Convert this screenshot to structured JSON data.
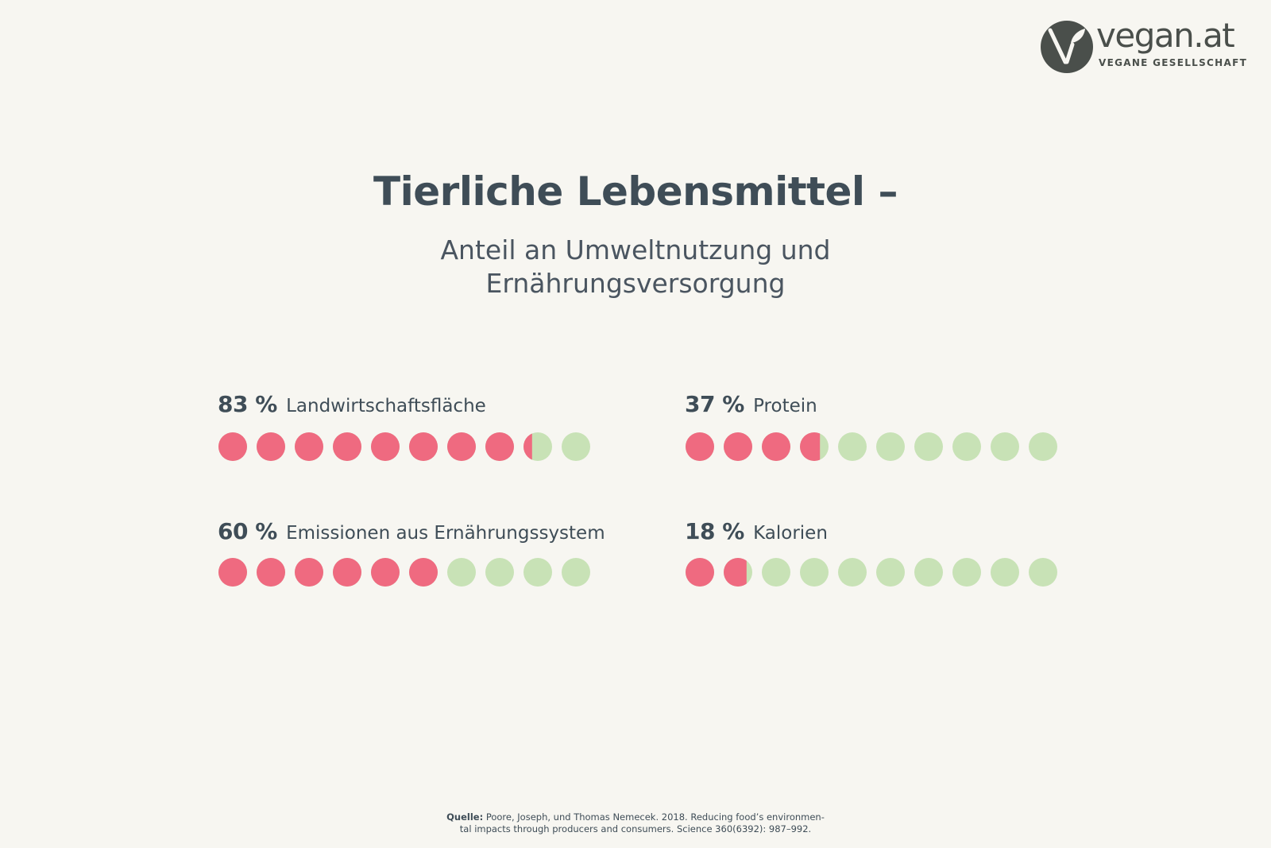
{
  "brand": {
    "name": "vegan.at",
    "tagline": "VEGANE GESELLSCHAFT",
    "color": "#4a4f4b"
  },
  "title": "Tierliche Lebensmittel –",
  "subtitle": {
    "line1": "Anteil an Umweltnutzung und",
    "line2": "Ernährungsversorgung"
  },
  "colors": {
    "animal": "#ef6a80",
    "rest": "#c8e2b6",
    "text": "#3f4d57",
    "background": "#f7f6f1"
  },
  "chart_data": {
    "type": "dot-matrix",
    "dots_per_metric": 10,
    "metrics": [
      {
        "id": "landwirtschaftsflaeche",
        "percent_label": "83 %",
        "label": "Landwirtschaftsfläche",
        "value": 83
      },
      {
        "id": "protein",
        "percent_label": "37 %",
        "label": "Protein",
        "value": 37
      },
      {
        "id": "emissionen",
        "percent_label": "60 %",
        "label": "Emissionen aus Ernährungssystem",
        "value": 60
      },
      {
        "id": "kalorien",
        "percent_label": "18 %",
        "label": "Kalorien",
        "value": 18
      }
    ]
  },
  "source": {
    "prefix": "Quelle:",
    "line1": "Poore, Joseph, und Thomas Nemecek. 2018. Reducing food’s environmen-",
    "line2": "tal impacts through producers and consumers. Science 360(6392): 987–992."
  }
}
